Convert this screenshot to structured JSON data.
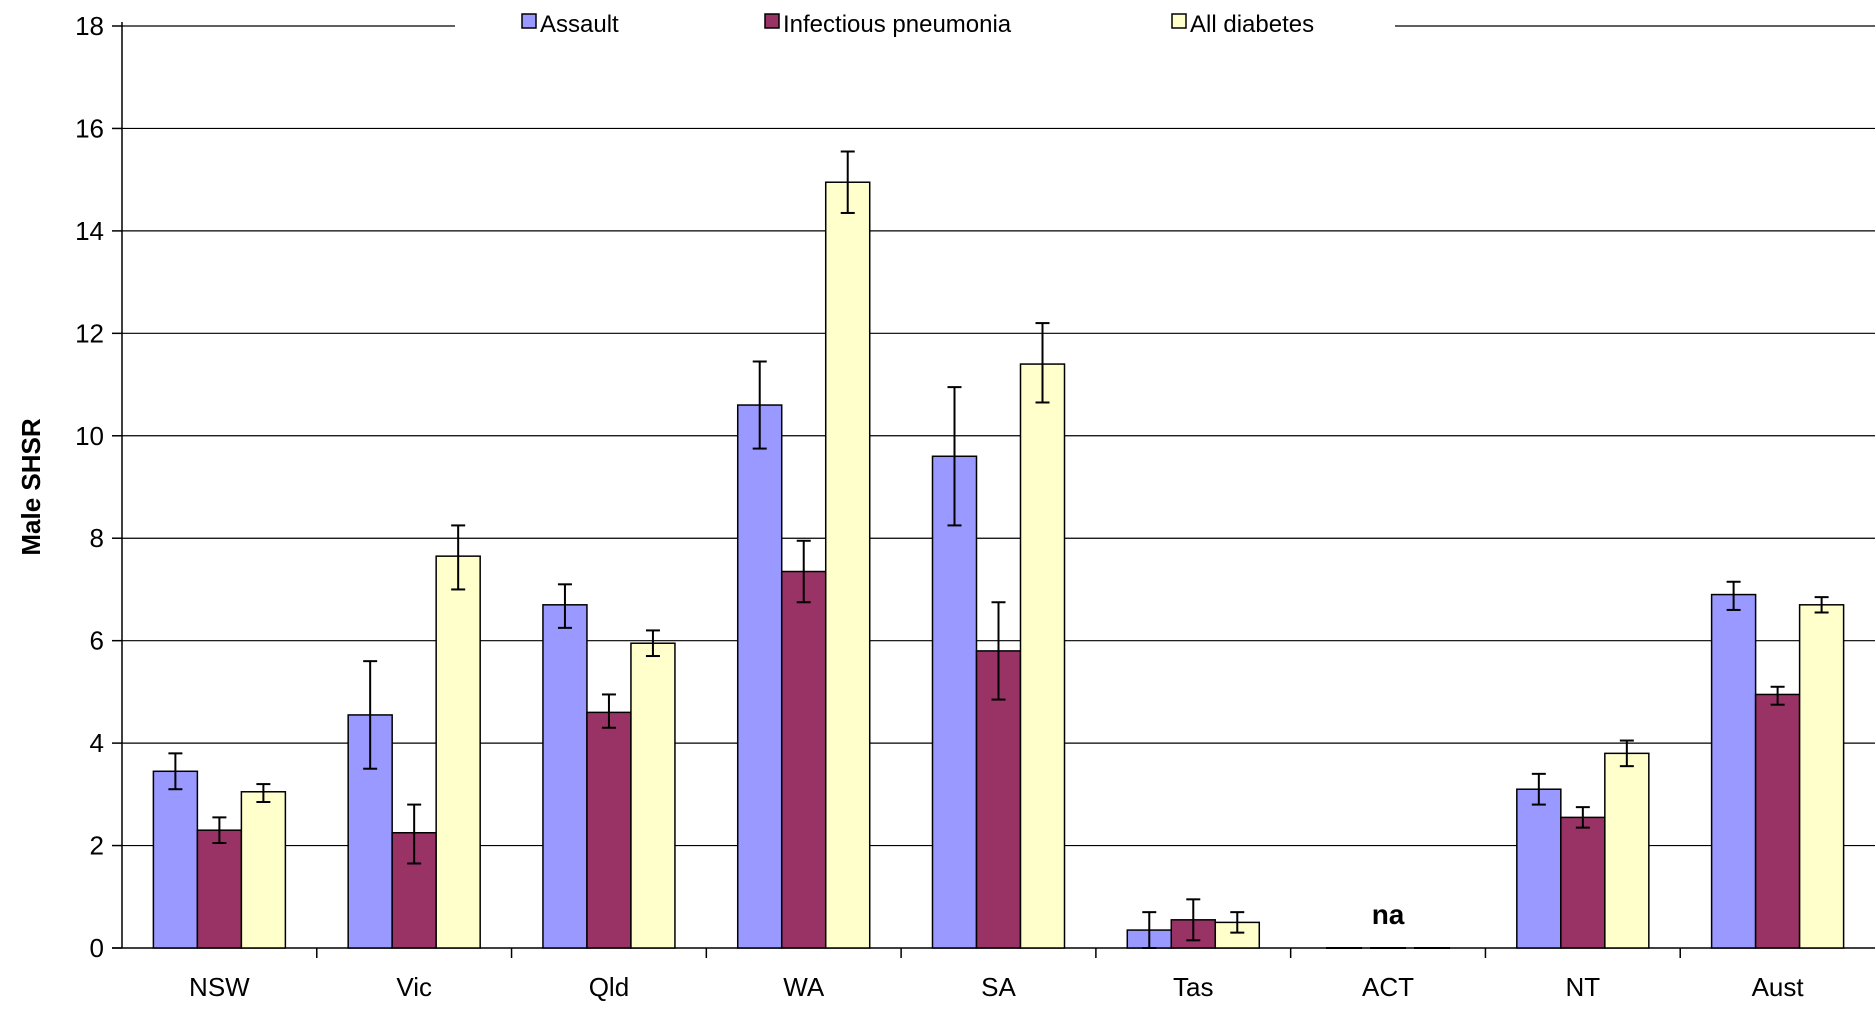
{
  "chart_data": {
    "type": "bar",
    "title": "",
    "xlabel": "",
    "ylabel": "Male SHSR",
    "ylim": [
      0,
      18
    ],
    "yticks": [
      "0",
      "2",
      "4",
      "6",
      "8",
      "10",
      "12",
      "14",
      "16",
      "18"
    ],
    "grid": true,
    "legend_position": "top",
    "categories": [
      "NSW",
      "Vic",
      "Qld",
      "WA",
      "SA",
      "Tas",
      "ACT",
      "NT",
      "Aust"
    ],
    "series": [
      {
        "name": "Assault",
        "color": "#9999ff",
        "values": [
          3.45,
          4.55,
          6.7,
          10.6,
          9.6,
          0.35,
          null,
          3.1,
          6.9
        ],
        "err_low": [
          3.1,
          3.5,
          6.25,
          9.75,
          8.25,
          0.0,
          null,
          2.8,
          6.6
        ],
        "err_high": [
          3.8,
          5.6,
          7.1,
          11.45,
          10.95,
          0.7,
          null,
          3.4,
          7.15
        ]
      },
      {
        "name": "Infectious pneumonia",
        "color": "#993366",
        "values": [
          2.3,
          2.25,
          4.6,
          7.35,
          5.8,
          0.55,
          null,
          2.55,
          4.95
        ],
        "err_low": [
          2.05,
          1.65,
          4.3,
          6.75,
          4.85,
          0.15,
          null,
          2.35,
          4.75
        ],
        "err_high": [
          2.55,
          2.8,
          4.95,
          7.95,
          6.75,
          0.95,
          null,
          2.75,
          5.1
        ]
      },
      {
        "name": "All diabetes",
        "color": "#ffffcc",
        "values": [
          3.05,
          7.65,
          5.95,
          14.95,
          11.4,
          0.5,
          null,
          3.8,
          6.7
        ],
        "err_low": [
          2.85,
          7.0,
          5.7,
          14.35,
          10.65,
          0.3,
          null,
          3.55,
          6.55
        ],
        "err_high": [
          3.2,
          8.25,
          6.2,
          15.55,
          12.2,
          0.7,
          null,
          4.05,
          6.85
        ]
      }
    ],
    "annotations": [
      {
        "category": "ACT",
        "text": "na"
      }
    ]
  }
}
